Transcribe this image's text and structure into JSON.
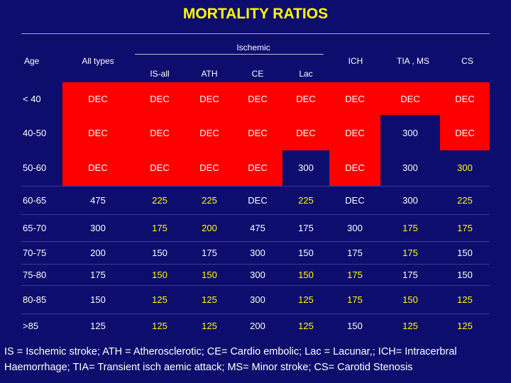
{
  "title": "MORTALITY RATIOS",
  "headers": {
    "age": "Age",
    "all_types": "All types",
    "ischemic": "Ischemic",
    "ich": "ICH",
    "tia_ms": "TIA , MS",
    "cs": "CS",
    "is_all": "IS-all",
    "ath": "ATH",
    "ce": "CE",
    "lac": "Lac"
  },
  "colors": {
    "background": "#0d0d6e",
    "title": "#ffff00",
    "highlight": "#ff0000",
    "accent_value": "#ffff00"
  },
  "rows": [
    {
      "age": "< 40",
      "cells": [
        "DEC",
        "DEC",
        "DEC",
        "DEC",
        "DEC",
        "DEC",
        "DEC",
        "DEC"
      ]
    },
    {
      "age": "40-50",
      "cells": [
        "DEC",
        "DEC",
        "DEC",
        "DEC",
        "DEC",
        "DEC",
        "300",
        "DEC"
      ]
    },
    {
      "age": "50-60",
      "cells": [
        "DEC",
        "DEC",
        "DEC",
        "DEC",
        "300",
        "DEC",
        "300",
        "300"
      ]
    },
    {
      "age": "60-65",
      "cells": [
        "475",
        "225",
        "225",
        "DEC",
        "225",
        "DEC",
        "300",
        "225"
      ]
    },
    {
      "age": "65-70",
      "cells": [
        "300",
        "175",
        "200",
        "475",
        "175",
        "300",
        "175",
        "175"
      ]
    },
    {
      "age": "70-75",
      "cells": [
        "200",
        "150",
        "175",
        "300",
        "150",
        "175",
        "175",
        "150"
      ]
    },
    {
      "age": "75-80",
      "cells": [
        "175",
        "150",
        "150",
        "300",
        "150",
        "175",
        "175",
        "150"
      ]
    },
    {
      "age": "80-85",
      "cells": [
        "150",
        "125",
        "125",
        "300",
        "125",
        "175",
        "150",
        "125"
      ]
    },
    {
      "age": ">85",
      "cells": [
        "125",
        "125",
        "125",
        "200",
        "125",
        "150",
        "125",
        "125"
      ]
    }
  ],
  "footnote": {
    "line1": "IS = Ischemic stroke; ATH = Atherosclerotic; CE= Cardio embolic; Lac = Lacunar,; ICH= Intracerbral",
    "line2": "Haemorrhage; TIA= Transient isch aemic attack; MS= Minor stroke; CS= Carotid Stenosis"
  }
}
